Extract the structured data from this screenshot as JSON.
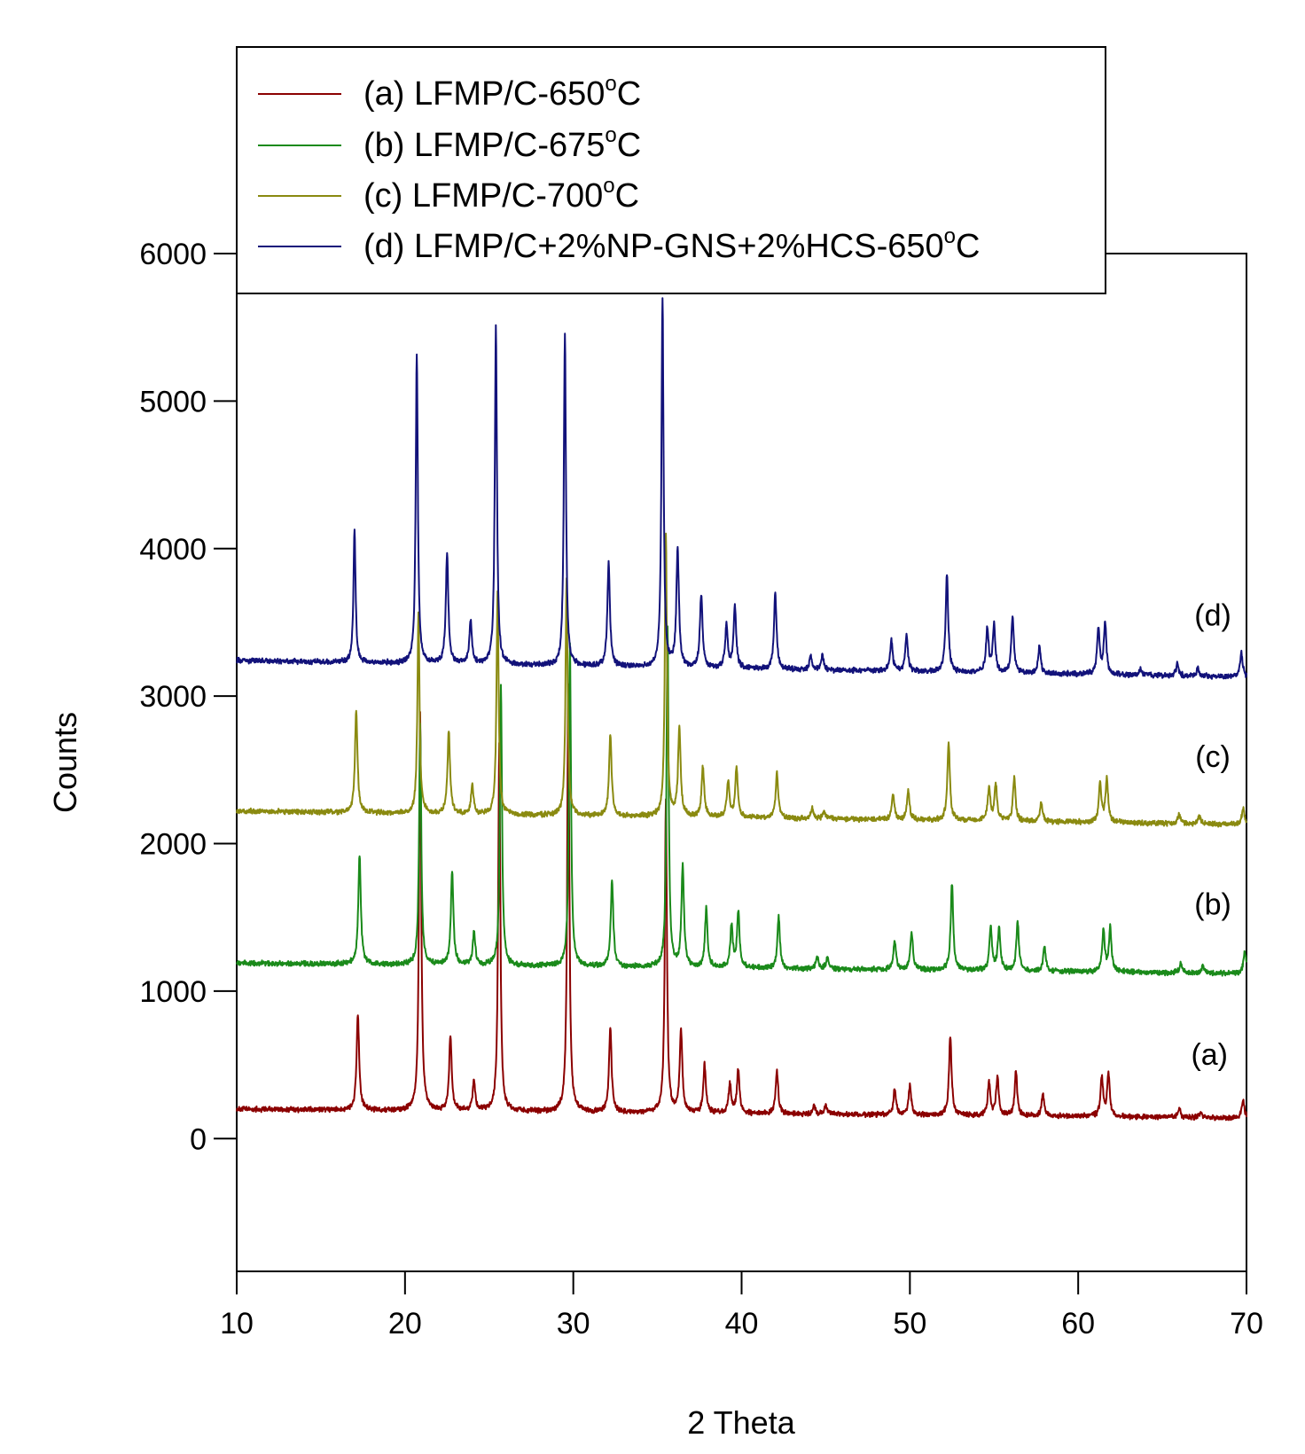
{
  "chart_data": {
    "type": "line",
    "xlabel": "2 Theta",
    "ylabel": "Counts",
    "xlim": [
      10,
      70
    ],
    "ylim": [
      -900,
      6000
    ],
    "xticks": [
      10,
      20,
      30,
      40,
      50,
      60,
      70
    ],
    "yticks": [
      0,
      1000,
      2000,
      3000,
      4000,
      5000,
      6000
    ],
    "grid": false,
    "legend_position": "top-left",
    "series": [
      {
        "key": "a",
        "name": "(a) LFMP/C-650°C",
        "legend_main": "(a) LFMP/C-650",
        "legend_sup": "o",
        "legend_tail": "C",
        "curve_label": "(a)",
        "label_at": [
          67.8,
          500
        ],
        "color": "#8b0000",
        "base_start": 200,
        "base_end": 140,
        "noise": 14,
        "peaks": [
          [
            17.2,
            650
          ],
          [
            20.9,
            2700
          ],
          [
            22.7,
            510
          ],
          [
            24.1,
            200
          ],
          [
            25.6,
            2500
          ],
          [
            29.7,
            2900
          ],
          [
            32.2,
            570
          ],
          [
            35.5,
            2100
          ],
          [
            36.4,
            560
          ],
          [
            37.8,
            330
          ],
          [
            39.3,
            200
          ],
          [
            39.8,
            300
          ],
          [
            42.1,
            290
          ],
          [
            44.3,
            50
          ],
          [
            45.0,
            60
          ],
          [
            49.1,
            180
          ],
          [
            50.0,
            200
          ],
          [
            52.4,
            540
          ],
          [
            54.7,
            220
          ],
          [
            55.2,
            260
          ],
          [
            56.3,
            300
          ],
          [
            57.9,
            150
          ],
          [
            61.4,
            270
          ],
          [
            61.8,
            290
          ],
          [
            66.0,
            60
          ],
          [
            67.3,
            40
          ],
          [
            69.8,
            120
          ]
        ]
      },
      {
        "key": "b",
        "name": "(b) LFMP/C-675°C",
        "legend_main": "(b) LFMP/C-675",
        "legend_sup": "o",
        "legend_tail": "C",
        "curve_label": "(b)",
        "label_at": [
          68.0,
          1520
        ],
        "color": "#1a8a1a",
        "base_start": 1190,
        "base_end": 1120,
        "noise": 14,
        "peaks": [
          [
            17.3,
            740
          ],
          [
            20.9,
            1620
          ],
          [
            22.8,
            620
          ],
          [
            24.1,
            230
          ],
          [
            25.7,
            1900
          ],
          [
            29.8,
            2200
          ],
          [
            32.3,
            590
          ],
          [
            35.6,
            2300
          ],
          [
            36.5,
            680
          ],
          [
            37.9,
            400
          ],
          [
            39.4,
            280
          ],
          [
            39.8,
            380
          ],
          [
            42.2,
            350
          ],
          [
            44.5,
            80
          ],
          [
            45.1,
            80
          ],
          [
            49.1,
            200
          ],
          [
            50.1,
            260
          ],
          [
            52.5,
            590
          ],
          [
            54.8,
            300
          ],
          [
            55.3,
            300
          ],
          [
            56.4,
            330
          ],
          [
            58.0,
            170
          ],
          [
            61.5,
            280
          ],
          [
            61.9,
            300
          ],
          [
            66.1,
            60
          ],
          [
            67.4,
            50
          ],
          [
            69.9,
            150
          ]
        ]
      },
      {
        "key": "c",
        "name": "(c) LFMP/C-700°C",
        "legend_main": "(c) LFMP/C-700",
        "legend_sup": "o",
        "legend_tail": "C",
        "curve_label": "(c)",
        "label_at": [
          68.0,
          2520
        ],
        "color": "#8a8a10",
        "base_start": 2220,
        "base_end": 2130,
        "noise": 14,
        "peaks": [
          [
            17.1,
            690
          ],
          [
            20.8,
            1350
          ],
          [
            22.6,
            560
          ],
          [
            24.0,
            190
          ],
          [
            25.5,
            1500
          ],
          [
            29.6,
            1600
          ],
          [
            32.2,
            550
          ],
          [
            35.5,
            1900
          ],
          [
            36.3,
            600
          ],
          [
            37.7,
            340
          ],
          [
            39.2,
            250
          ],
          [
            39.7,
            340
          ],
          [
            42.1,
            310
          ],
          [
            44.2,
            70
          ],
          [
            44.9,
            60
          ],
          [
            49.0,
            170
          ],
          [
            49.9,
            200
          ],
          [
            52.3,
            530
          ],
          [
            54.7,
            220
          ],
          [
            55.1,
            250
          ],
          [
            56.2,
            290
          ],
          [
            57.8,
            130
          ],
          [
            61.3,
            270
          ],
          [
            61.7,
            300
          ],
          [
            66.0,
            60
          ],
          [
            67.2,
            50
          ],
          [
            69.8,
            110
          ]
        ]
      },
      {
        "key": "d",
        "name": "(d) LFMP/C+2%NP-GNS+2%HCS-650°C",
        "legend_main": "(d) LFMP/C+2%NP-GNS+2%HCS-650",
        "legend_sup": "o",
        "legend_tail": "C",
        "curve_label": "(d)",
        "label_at": [
          68.0,
          3480
        ],
        "color": "#12127a",
        "base_start": 3240,
        "base_end": 3130,
        "noise": 14,
        "peaks": [
          [
            17.0,
            900
          ],
          [
            20.7,
            2100
          ],
          [
            22.5,
            740
          ],
          [
            23.9,
            290
          ],
          [
            25.4,
            2300
          ],
          [
            29.5,
            2250
          ],
          [
            32.1,
            710
          ],
          [
            35.3,
            2500
          ],
          [
            36.2,
            800
          ],
          [
            37.6,
            500
          ],
          [
            39.1,
            290
          ],
          [
            39.6,
            420
          ],
          [
            42.0,
            510
          ],
          [
            44.1,
            90
          ],
          [
            44.8,
            100
          ],
          [
            48.9,
            210
          ],
          [
            49.8,
            250
          ],
          [
            52.2,
            660
          ],
          [
            54.6,
            300
          ],
          [
            55.0,
            320
          ],
          [
            56.1,
            380
          ],
          [
            57.7,
            180
          ],
          [
            61.2,
            310
          ],
          [
            61.6,
            350
          ],
          [
            63.7,
            40
          ],
          [
            65.9,
            80
          ],
          [
            67.1,
            50
          ],
          [
            69.7,
            160
          ]
        ]
      }
    ]
  }
}
